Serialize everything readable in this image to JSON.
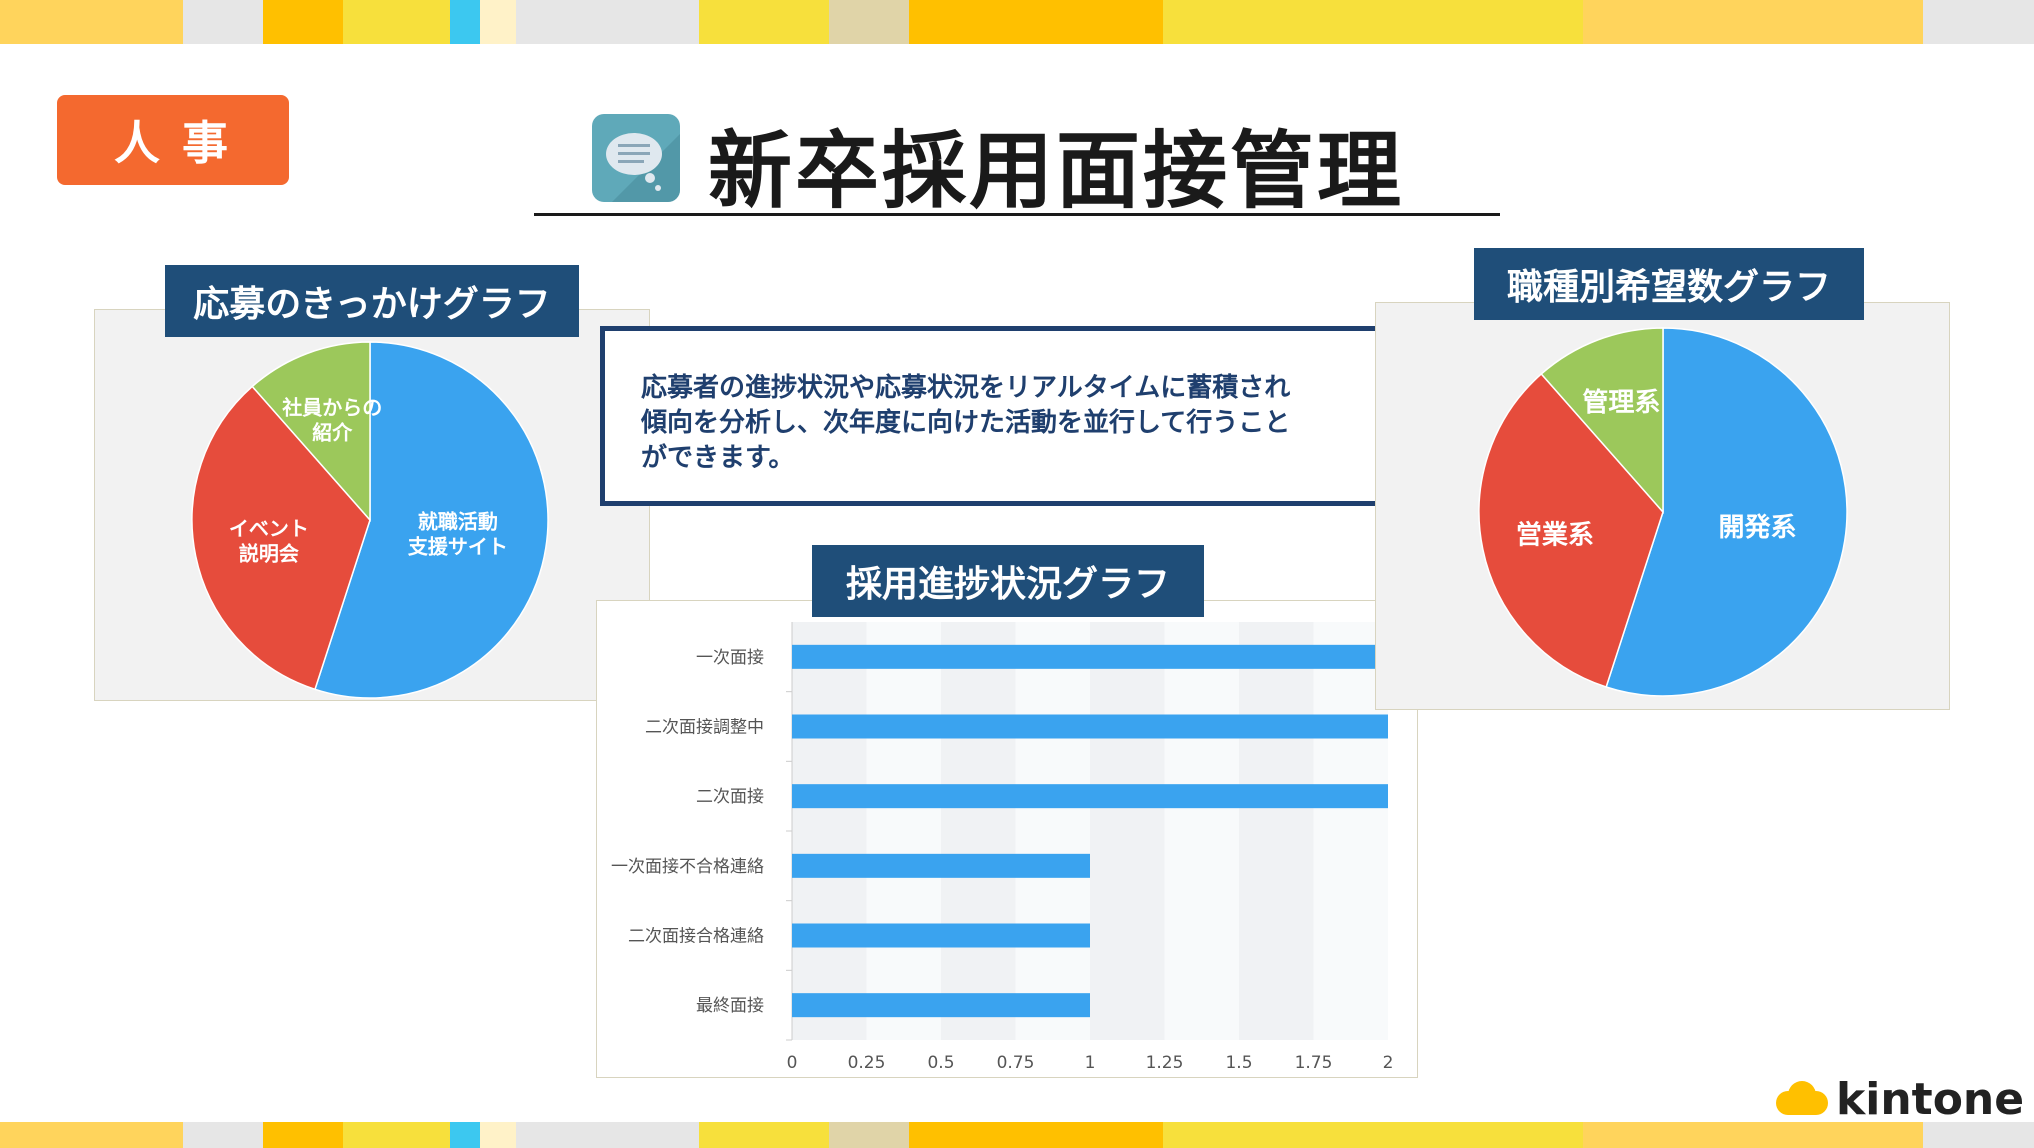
{
  "header": {
    "category_tag": "人事",
    "title": "新卒採用面接管理",
    "app_icon": "speech-bubble-icon"
  },
  "description": {
    "lines": [
      "応募者の進捗状況や応募状況をリアルタイムに蓄積され",
      "傾向を分析し、次年度に向けた活動を並行して行うこと",
      "ができます。"
    ]
  },
  "colors": {
    "accent_orange": "#f4692f",
    "navy": "#1f4e79",
    "pie_blue": "#3aa3ef",
    "pie_red": "#e64c3c",
    "pie_green": "#9cc85b",
    "bar_blue": "#3aa3ef",
    "stripe": [
      "#ffd45c",
      "#e6e6e6",
      "#ffc000",
      "#f7e03c",
      "#3cc8f0",
      "#fff2c8",
      "#e6e6e6",
      "#f7e03c",
      "#e0d4a8",
      "#ffc000",
      "#f7e03c",
      "#ffd45c",
      "#e6e6e6"
    ]
  },
  "footer": {
    "brand": "kintone"
  },
  "chart_data": [
    {
      "type": "pie",
      "title": "応募のきっかけグラフ",
      "slices": [
        {
          "label": "就職活動支援サイト",
          "label_lines": [
            "就職活動",
            "支援サイト"
          ],
          "value": 55,
          "color": "#3aa3ef"
        },
        {
          "label": "イベント説明会",
          "label_lines": [
            "イベント",
            "説明会"
          ],
          "value": 33.5,
          "color": "#e64c3c"
        },
        {
          "label": "社員からの紹介",
          "label_lines": [
            "社員からの",
            "紹介"
          ],
          "value": 11.5,
          "color": "#9cc85b"
        }
      ]
    },
    {
      "type": "bar",
      "orientation": "horizontal",
      "title": "採用進捗状況グラフ",
      "categories": [
        "一次面接",
        "二次面接調整中",
        "二次面接",
        "一次面接不合格連絡",
        "二次面接合格連絡",
        "最終面接"
      ],
      "values": [
        2,
        2,
        2,
        1,
        1,
        1
      ],
      "xlim": [
        0,
        2
      ],
      "xticks": [
        "0",
        "0.25",
        "0.5",
        "0.75",
        "1",
        "1.25",
        "1.5",
        "1.75",
        "2"
      ],
      "grid": "alternating bands"
    },
    {
      "type": "pie",
      "title": "職種別希望数グラフ",
      "slices": [
        {
          "label": "開発系",
          "label_lines": [
            "開発系"
          ],
          "value": 55,
          "color": "#3aa3ef"
        },
        {
          "label": "営業系",
          "label_lines": [
            "営業系"
          ],
          "value": 33.5,
          "color": "#e64c3c"
        },
        {
          "label": "管理系",
          "label_lines": [
            "管理系"
          ],
          "value": 11.5,
          "color": "#9cc85b"
        }
      ]
    }
  ]
}
